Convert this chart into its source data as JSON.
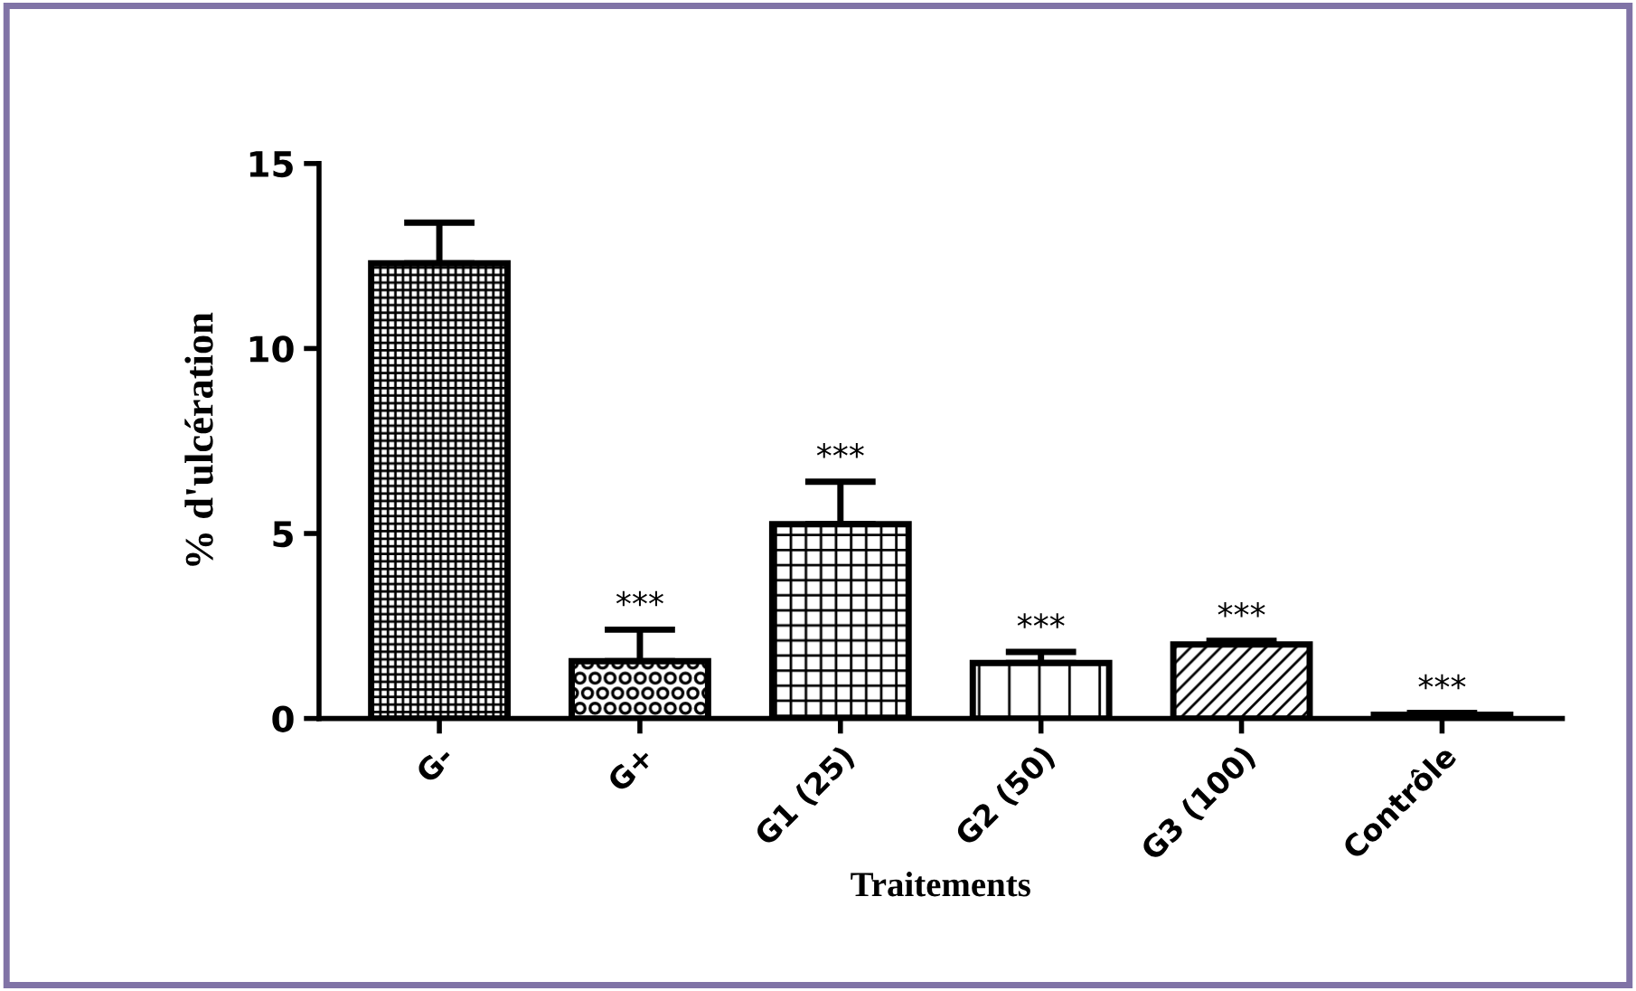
{
  "chart_data": {
    "type": "bar",
    "xlabel": "Traitements",
    "ylabel": "% d'ulcération",
    "categories": [
      "G-",
      "G+",
      "G1 (25)",
      "G2 (50)",
      "G3 (100)",
      "Contrôle"
    ],
    "values": [
      12.3,
      1.55,
      5.25,
      1.5,
      2.0,
      0.1
    ],
    "errors": [
      1.1,
      0.85,
      1.15,
      0.3,
      0.1,
      0.05
    ],
    "ylim": [
      0,
      15
    ],
    "yticks": [
      0,
      5,
      10,
      15
    ],
    "grid": false,
    "legend": false,
    "annotations": [
      {
        "text": "***",
        "x": "G+",
        "y": 2.4
      },
      {
        "text": "***",
        "x": "G1 (25)",
        "y": 6.4
      },
      {
        "text": "***",
        "x": "G2 (50)",
        "y": 1.8
      },
      {
        "text": "***",
        "x": "G3 (100)",
        "y": 2.1
      },
      {
        "text": "***",
        "x": "Contrôle",
        "y": 0.15
      }
    ]
  }
}
